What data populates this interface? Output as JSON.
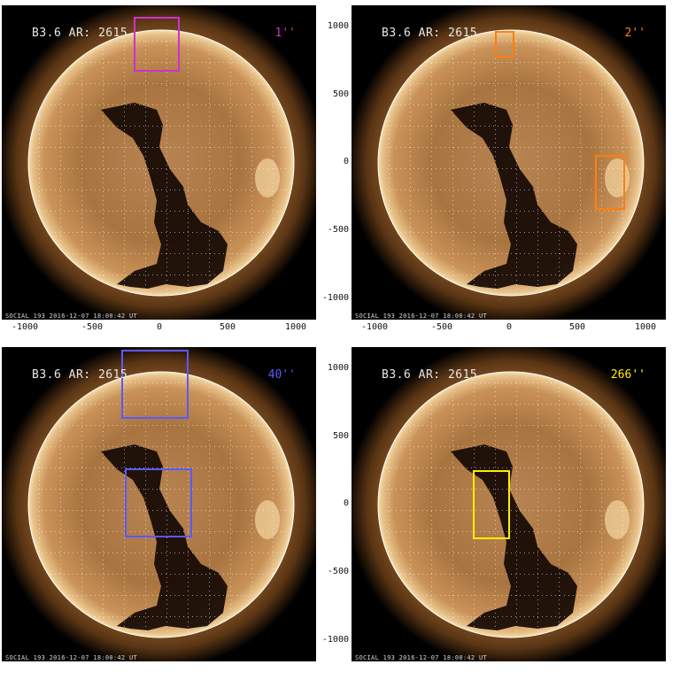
{
  "panels": [
    {
      "title": "B3.6 AR: 2615",
      "label": "1''",
      "label_color": "#cc33cc",
      "caption": "SOCIAL 193  2016-12-07 18:00:42 UT",
      "boxes_color": "#cc33cc"
    },
    {
      "title": "B3.6 AR: 2615",
      "label": "2''",
      "label_color": "#ff7f11",
      "caption": "SOCIAL 193  2016-12-07 18:00:42 UT",
      "boxes_color": "#ff7f11"
    },
    {
      "title": "B3.6 AR: 2615",
      "label": "40''",
      "label_color": "#5a5aff",
      "caption": "SOCIAL 193  2016-12-07 18:00:42 UT",
      "boxes_color": "#5a5aff"
    },
    {
      "title": "B3.6 AR: 2615",
      "label": "266''",
      "label_color": "#ffee00",
      "caption": "SOCIAL 193  2016-12-07 18:00:42 UT",
      "boxes_color": "#ffee00"
    }
  ],
  "axes": {
    "x_ticks": [
      "-1000",
      "-500",
      "0",
      "500",
      "1000"
    ],
    "y_ticks": [
      "1000",
      "500",
      "0",
      "-500",
      "-1000"
    ]
  }
}
